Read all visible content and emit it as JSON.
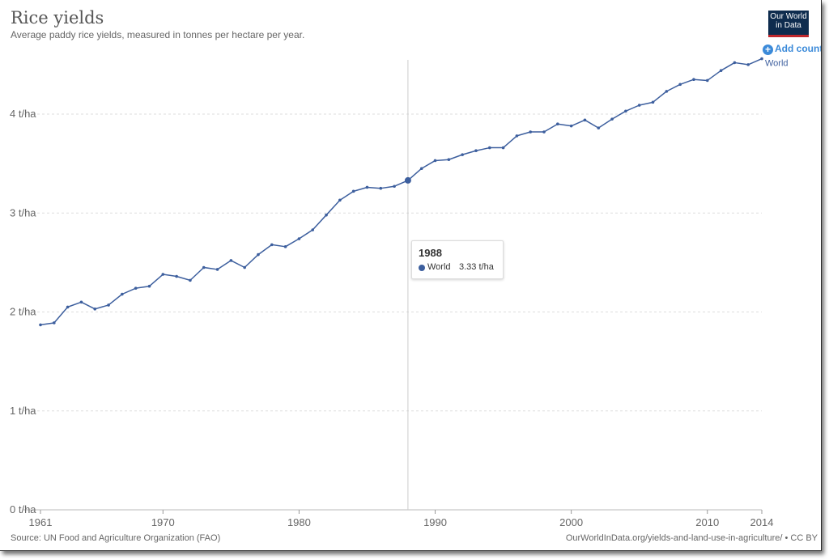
{
  "header": {
    "title": "Rice yields",
    "subtitle": "Average paddy rice yields, measured in tonnes per hectare per year.",
    "logo_line1": "Our World",
    "logo_line2": "in Data",
    "add_country_label": "Add country"
  },
  "tooltip": {
    "year": "1988",
    "series": "World",
    "value": "3.33 t/ha"
  },
  "footer": {
    "source": "Source: UN Food and Agriculture Organization (FAO)",
    "url": "OurWorldInData.org/yields-and-land-use-in-agriculture/ • CC BY"
  },
  "colors": {
    "series": "#3d5f9e",
    "logo_bg": "#0e2c4e",
    "logo_accent": "#c0282d",
    "button": "#3b8ad9"
  },
  "chart_data": {
    "type": "line",
    "title": "Rice yields",
    "subtitle": "Average paddy rice yields, measured in tonnes per hectare per year.",
    "xlim": [
      1961,
      2014
    ],
    "ylim": [
      0,
      4.5
    ],
    "y_ticks": [
      0,
      1,
      2,
      3,
      4
    ],
    "y_tick_labels": [
      "0 t/ha",
      "1 t/ha",
      "2 t/ha",
      "3 t/ha",
      "4 t/ha"
    ],
    "x_ticks": [
      1961,
      1970,
      1980,
      1990,
      2000,
      2010,
      2014
    ],
    "x_tick_labels": [
      "1961",
      "1970",
      "1980",
      "1990",
      "2000",
      "2010",
      "2014"
    ],
    "grid": "horizontal dashed",
    "highlight_year": 1988,
    "series": [
      {
        "name": "World",
        "x": [
          1961,
          1962,
          1963,
          1964,
          1965,
          1966,
          1967,
          1968,
          1969,
          1970,
          1971,
          1972,
          1973,
          1974,
          1975,
          1976,
          1977,
          1978,
          1979,
          1980,
          1981,
          1982,
          1983,
          1984,
          1985,
          1986,
          1987,
          1988,
          1989,
          1990,
          1991,
          1992,
          1993,
          1994,
          1995,
          1996,
          1997,
          1998,
          1999,
          2000,
          2001,
          2002,
          2003,
          2004,
          2005,
          2006,
          2007,
          2008,
          2009,
          2010,
          2011,
          2012,
          2013,
          2014
        ],
        "values": [
          1.87,
          1.89,
          2.05,
          2.1,
          2.03,
          2.07,
          2.18,
          2.24,
          2.26,
          2.38,
          2.36,
          2.32,
          2.45,
          2.43,
          2.52,
          2.45,
          2.58,
          2.68,
          2.66,
          2.74,
          2.83,
          2.98,
          3.13,
          3.22,
          3.26,
          3.25,
          3.27,
          3.33,
          3.45,
          3.53,
          3.54,
          3.59,
          3.63,
          3.66,
          3.66,
          3.78,
          3.82,
          3.82,
          3.9,
          3.88,
          3.94,
          3.86,
          3.95,
          4.03,
          4.09,
          4.12,
          4.23,
          4.3,
          4.35,
          4.34,
          4.44,
          4.52,
          4.5,
          4.56
        ]
      }
    ]
  }
}
